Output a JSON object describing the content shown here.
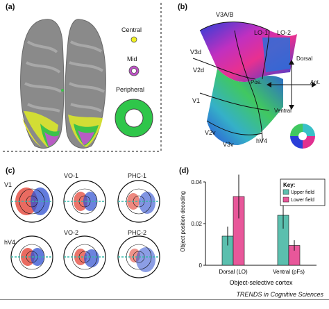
{
  "panels": {
    "a": {
      "label": "(a)",
      "legend": [
        "Central",
        "Mid",
        "Peripheral"
      ]
    },
    "b": {
      "label": "(b)",
      "areas": [
        "V3A/B",
        "LO-1",
        "LO-2",
        "V3d",
        "V2d",
        "V1",
        "V2v",
        "V3v",
        "hV4"
      ],
      "directions": {
        "up": "Dorsal",
        "down": "Ventral",
        "left": "Pos.",
        "right": "Ant."
      }
    },
    "c": {
      "label": "(c)",
      "rois": [
        "V1",
        "VO-1",
        "PHC-1",
        "hV4",
        "VO-2",
        "PHC-2"
      ]
    },
    "d": {
      "label": "(d)"
    }
  },
  "chart_data": {
    "type": "bar",
    "categories": [
      "Dorsal (LO)",
      "Ventral (pFs)"
    ],
    "series": [
      {
        "name": "Upper field",
        "values": [
          0.014,
          0.024
        ],
        "errors": [
          0.0045,
          0.0065
        ],
        "color": "#5bbfae"
      },
      {
        "name": "Lower field",
        "values": [
          0.033,
          0.0095
        ],
        "errors": [
          0.0105,
          0.0025
        ],
        "color": "#e8579a"
      }
    ],
    "legend_title": "Key:",
    "xlabel": "Object-selective cortex",
    "ylabel": "Object position decoding",
    "ylim": [
      0,
      0.04
    ],
    "yticks": [
      "0",
      "0.02",
      "0.04"
    ],
    "grid": false,
    "legend_position": "top-right"
  },
  "footer": {
    "source": "TRENDS in Cognitive Sciences"
  }
}
